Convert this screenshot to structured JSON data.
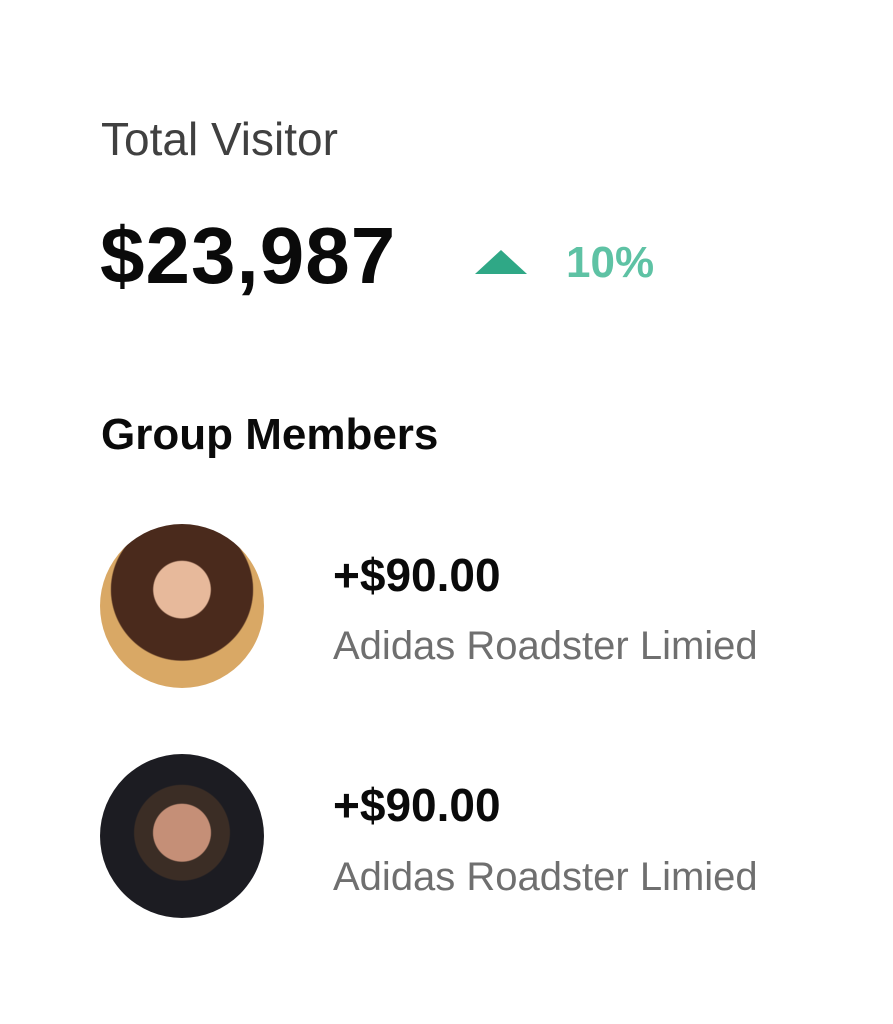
{
  "summary": {
    "label": "Total Visitor",
    "amount": "$23,987",
    "trend_icon": "triangle-up-icon",
    "change": "10%",
    "colors": {
      "trend_icon": "#2fa886",
      "change": "#5ec2a4"
    }
  },
  "group": {
    "title": "Group Members",
    "members": [
      {
        "amount": "+$90.00",
        "company": "Adidas Roadster Limied"
      },
      {
        "amount": "+$90.00",
        "company": "Adidas Roadster Limied"
      }
    ]
  }
}
